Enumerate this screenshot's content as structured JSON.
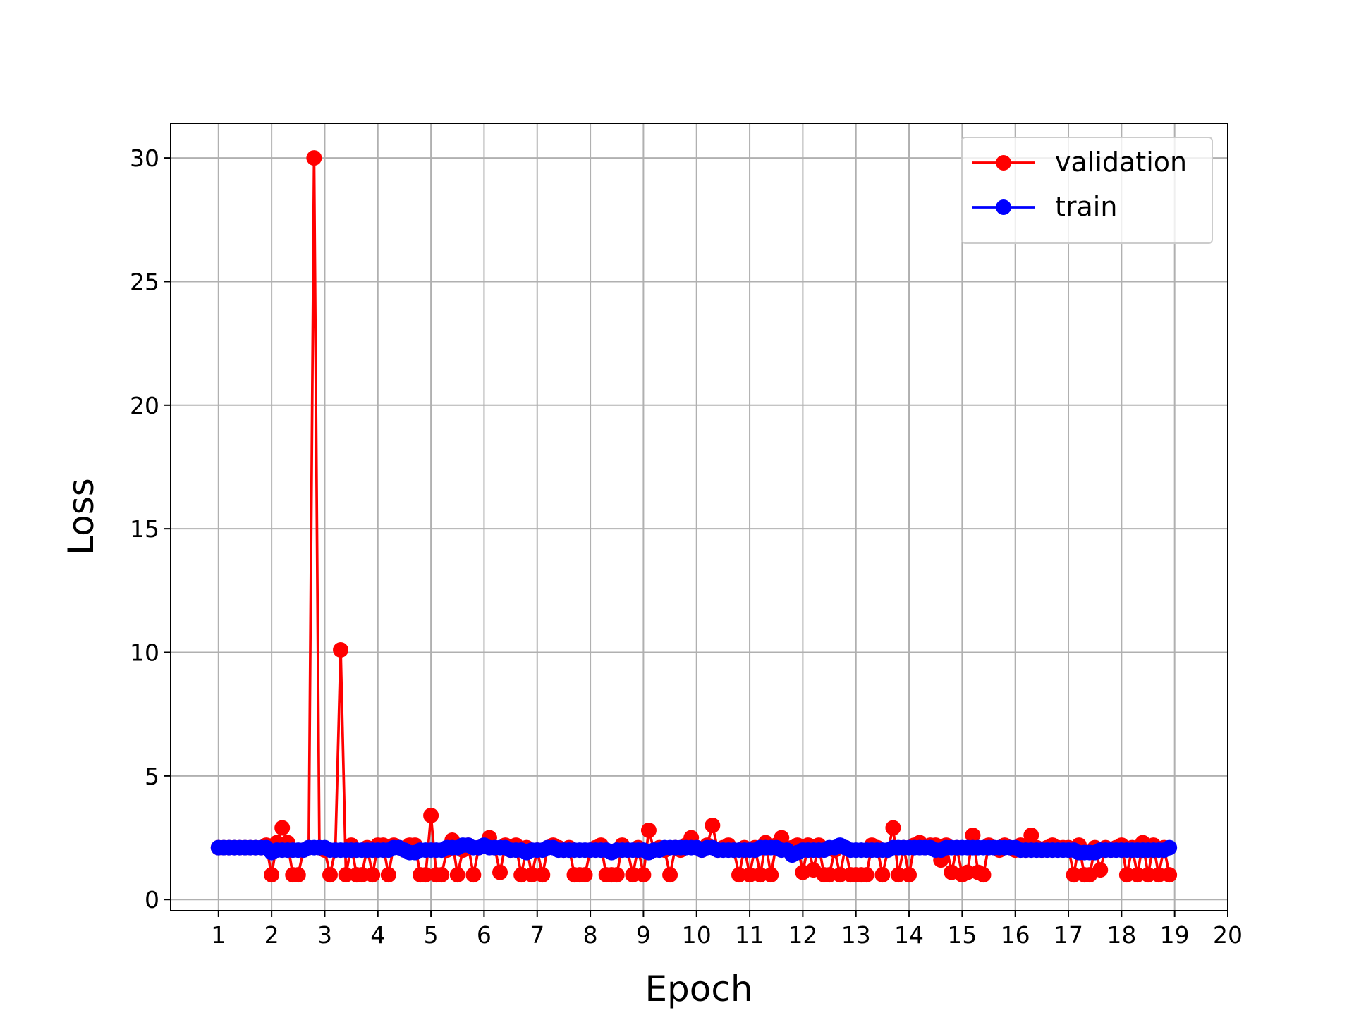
{
  "chart_data": {
    "type": "line",
    "xlabel": "Epoch",
    "ylabel": "Loss",
    "x": [
      1,
      1.1,
      1.2,
      1.3,
      1.4,
      1.5,
      1.6,
      1.7,
      1.8,
      1.9,
      2,
      2.1,
      2.2,
      2.3,
      2.4,
      2.5,
      2.6,
      2.7,
      2.8,
      2.9,
      3,
      3.1,
      3.2,
      3.3,
      3.4,
      3.5,
      3.6,
      3.7,
      3.8,
      3.9,
      4,
      4.1,
      4.2,
      4.3,
      4.4,
      4.5,
      4.6,
      4.7,
      4.8,
      4.9,
      5,
      5.1,
      5.2,
      5.3,
      5.4,
      5.5,
      5.6,
      5.7,
      5.8,
      5.9,
      6,
      6.1,
      6.2,
      6.3,
      6.4,
      6.5,
      6.6,
      6.7,
      6.8,
      6.9,
      7,
      7.1,
      7.2,
      7.3,
      7.4,
      7.5,
      7.6,
      7.7,
      7.8,
      7.9,
      8,
      8.1,
      8.2,
      8.3,
      8.4,
      8.5,
      8.6,
      8.7,
      8.8,
      8.9,
      9,
      9.1,
      9.2,
      9.3,
      9.4,
      9.5,
      9.6,
      9.7,
      9.8,
      9.9,
      10,
      10.1,
      10.2,
      10.3,
      10.4,
      10.5,
      10.6,
      10.7,
      10.8,
      10.9,
      11,
      11.1,
      11.2,
      11.3,
      11.4,
      11.5,
      11.6,
      11.7,
      11.8,
      11.9,
      12,
      12.1,
      12.2,
      12.3,
      12.4,
      12.5,
      12.6,
      12.7,
      12.8,
      12.9,
      13,
      13.1,
      13.2,
      13.3,
      13.4,
      13.5,
      13.6,
      13.7,
      13.8,
      13.9,
      14,
      14.1,
      14.2,
      14.3,
      14.4,
      14.5,
      14.6,
      14.7,
      14.8,
      14.9,
      15,
      15.1,
      15.2,
      15.3,
      15.4,
      15.5,
      15.6,
      15.7,
      15.8,
      15.9,
      16,
      16.1,
      16.2,
      16.3,
      16.4,
      16.5,
      16.6,
      16.7,
      16.8,
      16.9,
      17,
      17.1,
      17.2,
      17.3,
      17.4,
      17.5,
      17.6,
      17.7,
      17.8,
      17.9,
      18,
      18.1,
      18.2,
      18.3,
      18.4,
      18.5,
      18.6,
      18.7,
      18.8,
      18.9
    ],
    "series": [
      {
        "name": "validation",
        "color": "#ff0000",
        "values": [
          2.1,
          2.1,
          2.1,
          2.1,
          2.1,
          2.1,
          2.1,
          2.1,
          2.1,
          2.2,
          1.0,
          2.3,
          2.9,
          2.3,
          1.0,
          1.0,
          2.0,
          2.1,
          30.0,
          2.1,
          2.0,
          1.0,
          2.0,
          10.1,
          1.0,
          2.2,
          1.0,
          1.0,
          2.1,
          1.0,
          2.2,
          2.2,
          1.0,
          2.2,
          2.1,
          2.0,
          2.2,
          2.2,
          1.0,
          1.0,
          3.4,
          1.0,
          1.0,
          2.0,
          2.4,
          1.0,
          2.0,
          2.2,
          1.0,
          2.1,
          2.2,
          2.5,
          2.1,
          1.1,
          2.2,
          2.0,
          2.2,
          1.0,
          2.1,
          1.0,
          2.0,
          1.0,
          2.1,
          2.2,
          2.1,
          2.0,
          2.1,
          1.0,
          1.0,
          1.0,
          2.0,
          2.1,
          2.2,
          1.0,
          1.0,
          1.0,
          2.2,
          2.0,
          1.0,
          2.1,
          1.0,
          2.8,
          2.0,
          2.1,
          2.0,
          1.0,
          2.1,
          2.0,
          2.2,
          2.5,
          2.1,
          2.0,
          2.2,
          3.0,
          2.0,
          2.1,
          2.2,
          2.0,
          1.0,
          2.1,
          1.0,
          2.1,
          1.0,
          2.3,
          1.0,
          2.2,
          2.5,
          2.0,
          2.1,
          2.2,
          1.1,
          2.2,
          1.2,
          2.2,
          1.0,
          1.0,
          2.0,
          1.0,
          2.1,
          1.0,
          1.0,
          1.0,
          1.0,
          2.2,
          2.1,
          1.0,
          2.0,
          2.9,
          1.0,
          2.1,
          1.0,
          2.2,
          2.3,
          2.1,
          2.2,
          2.2,
          1.6,
          2.2,
          1.1,
          2.1,
          1.0,
          1.1,
          2.6,
          1.1,
          1.0,
          2.2,
          2.1,
          2.0,
          2.2,
          2.1,
          2.0,
          2.2,
          2.0,
          2.6,
          2.1,
          2.0,
          2.1,
          2.2,
          2.1,
          2.1,
          2.1,
          1.0,
          2.2,
          1.0,
          1.0,
          2.1,
          1.2,
          2.1,
          2.0,
          2.1,
          2.2,
          1.0,
          2.1,
          1.0,
          2.3,
          1.0,
          2.2,
          1.0,
          2.1,
          1.0
        ]
      },
      {
        "name": "train",
        "color": "#0000ff",
        "values": [
          2.1,
          2.1,
          2.1,
          2.1,
          2.1,
          2.1,
          2.1,
          2.1,
          2.1,
          2.1,
          1.9,
          2.0,
          2.0,
          2.0,
          2.0,
          2.0,
          2.0,
          2.1,
          2.1,
          2.1,
          2.1,
          2.0,
          2.0,
          2.0,
          2.0,
          2.0,
          2.0,
          2.0,
          2.0,
          2.0,
          2.0,
          2.0,
          2.0,
          2.1,
          2.1,
          2.0,
          1.9,
          1.9,
          2.0,
          2.0,
          2.0,
          2.0,
          2.0,
          2.1,
          2.1,
          2.1,
          2.2,
          2.2,
          2.1,
          2.1,
          2.2,
          2.1,
          2.1,
          2.1,
          2.1,
          2.0,
          2.0,
          2.0,
          1.9,
          2.0,
          2.0,
          2.0,
          2.1,
          2.1,
          2.0,
          2.0,
          2.0,
          2.0,
          2.0,
          2.0,
          2.0,
          2.0,
          2.0,
          2.0,
          1.9,
          2.0,
          2.0,
          2.0,
          2.0,
          2.0,
          2.0,
          1.9,
          2.0,
          2.0,
          2.1,
          2.1,
          2.1,
          2.1,
          2.1,
          2.1,
          2.1,
          2.0,
          2.1,
          2.1,
          2.0,
          2.0,
          2.0,
          2.0,
          2.0,
          2.0,
          2.0,
          2.0,
          2.1,
          2.1,
          2.1,
          2.1,
          2.0,
          2.0,
          1.8,
          1.9,
          2.0,
          2.0,
          2.0,
          2.0,
          2.0,
          2.1,
          2.1,
          2.2,
          2.1,
          2.0,
          2.0,
          2.0,
          2.0,
          2.0,
          2.0,
          2.0,
          2.0,
          2.1,
          2.1,
          2.1,
          2.1,
          2.1,
          2.1,
          2.1,
          2.1,
          2.0,
          2.0,
          2.1,
          2.1,
          2.1,
          2.1,
          2.1,
          2.1,
          2.1,
          2.1,
          2.1,
          2.1,
          2.1,
          2.1,
          2.1,
          2.1,
          2.0,
          2.0,
          2.0,
          2.0,
          2.0,
          2.0,
          2.0,
          2.0,
          2.0,
          2.0,
          2.0,
          1.9,
          1.9,
          1.9,
          1.9,
          2.0,
          2.0,
          2.0,
          2.0,
          2.0,
          2.0,
          2.0,
          2.0,
          2.0,
          2.0,
          2.0,
          2.0,
          2.0,
          2.1
        ]
      }
    ],
    "xlim": [
      0.1,
      20
    ],
    "xticks": [
      1,
      2,
      3,
      4,
      5,
      6,
      7,
      8,
      9,
      10,
      11,
      12,
      13,
      14,
      15,
      16,
      17,
      18,
      19,
      20
    ],
    "ylim": [
      -0.45,
      31.4
    ],
    "yticks": [
      0,
      5,
      10,
      15,
      20,
      25,
      30
    ],
    "grid": true,
    "legend": "upper right"
  }
}
